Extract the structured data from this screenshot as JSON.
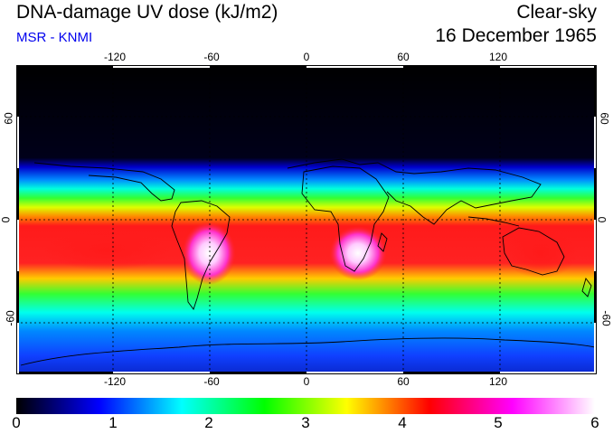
{
  "header": {
    "title": "DNA-damage UV dose (kJ/m2)",
    "subtitle": "MSR - KNMI",
    "condition": "Clear-sky",
    "date": "16 December 1965"
  },
  "map": {
    "longitude_labels_top": [
      "-120",
      "-60",
      "0",
      "60",
      "120"
    ],
    "longitude_labels_bottom": [
      "-120",
      "-60",
      "0",
      "60",
      "120"
    ],
    "latitude_labels_left": [
      "60",
      "0",
      "-60"
    ],
    "latitude_labels_right": [
      "60",
      "0",
      "-60"
    ],
    "longitude_values": [
      -120,
      -60,
      0,
      60,
      120
    ],
    "latitude_values": [
      60,
      0,
      -60
    ]
  },
  "colorbar": {
    "labels": [
      "0",
      "1",
      "2",
      "3",
      "4",
      "5",
      "6"
    ],
    "min": 0,
    "max": 6,
    "stops": [
      "#000000",
      "#0000ff",
      "#00ffff",
      "#00ff00",
      "#ffff00",
      "#ff0000",
      "#ff00ff",
      "#ffffff"
    ]
  },
  "colors": {
    "subtitle": "#0000ee",
    "grid": "#000000"
  }
}
